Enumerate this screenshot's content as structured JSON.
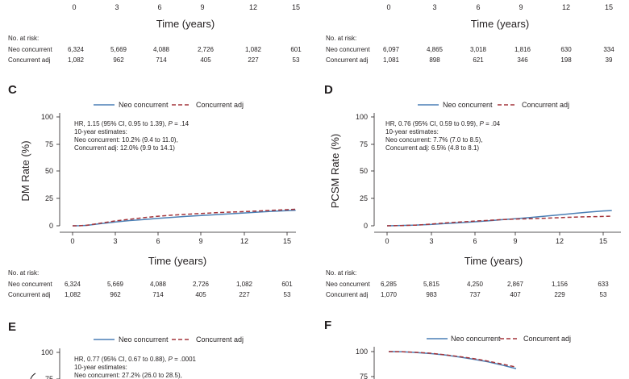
{
  "colors": {
    "neo": "#4a7fb5",
    "adj": "#a4343a",
    "axis": "#231f20"
  },
  "risk_header": "No. at risk:",
  "top_left": {
    "ticks": [
      "0",
      "3",
      "6",
      "9",
      "12",
      "15"
    ],
    "xlabel": "Time (years)",
    "risk_rows": [
      {
        "label": "Neo concurrent",
        "values": [
          "6,324",
          "5,669",
          "4,088",
          "2,726",
          "1,082",
          "601"
        ]
      },
      {
        "label": "Concurrent adj",
        "values": [
          "1,082",
          "962",
          "714",
          "405",
          "227",
          "53"
        ]
      }
    ]
  },
  "top_right": {
    "ticks": [
      "0",
      "3",
      "6",
      "9",
      "12",
      "15"
    ],
    "xlabel": "Time (years)",
    "risk_rows": [
      {
        "label": "Neo concurrent",
        "values": [
          "6,097",
          "4,865",
          "3,018",
          "1,816",
          "630",
          "334"
        ]
      },
      {
        "label": "Concurrent adj",
        "values": [
          "1,081",
          "898",
          "621",
          "346",
          "198",
          "39"
        ]
      }
    ]
  },
  "panel_c": {
    "letter": "C",
    "legend": [
      "Neo concurrent",
      "Concurrent adj"
    ],
    "hr_prefix": "HR, 1.15 (95% CI, 0.95 to 1.39),",
    "hr_p": "P",
    "hr_suffix": " = .14",
    "ann_lines": [
      "10-year estimates:",
      "Neo concurrent: 10.2% (9.4 to 11.0),",
      "Concurrent adj: 12.0% (9.9 to 14.1)"
    ],
    "ylabel": "DM Rate (%)",
    "xlabel": "Time (years)",
    "yticks": [
      "0",
      "25",
      "50",
      "75",
      "100"
    ],
    "xticks": [
      "0",
      "3",
      "6",
      "9",
      "12",
      "15"
    ],
    "risk_rows": [
      {
        "label": "Neo concurrent",
        "values": [
          "6,324",
          "5,669",
          "4,088",
          "2,726",
          "1,082",
          "601"
        ]
      },
      {
        "label": "Concurrent adj",
        "values": [
          "1,082",
          "962",
          "714",
          "405",
          "227",
          "53"
        ]
      }
    ]
  },
  "panel_d": {
    "letter": "D",
    "legend": [
      "Neo concurrent",
      "Concurrent adj"
    ],
    "hr_prefix": "HR, 0.76 (95% CI, 0.59 to 0.99),",
    "hr_p": "P",
    "hr_suffix": " = .04",
    "ann_lines": [
      "10-year estimates:",
      "Neo concurrent: 7.7% (7.0 to 8.5),",
      "Concurrent adj: 6.5% (4.8 to 8.1)"
    ],
    "ylabel": "PCSM Rate (%)",
    "xlabel": "Time (years)",
    "yticks": [
      "0",
      "25",
      "50",
      "75",
      "100"
    ],
    "xticks": [
      "0",
      "3",
      "6",
      "9",
      "12",
      "15"
    ],
    "risk_rows": [
      {
        "label": "Neo concurrent",
        "values": [
          "6,285",
          "5,815",
          "4,250",
          "2,867",
          "1,156",
          "633"
        ]
      },
      {
        "label": "Concurrent adj",
        "values": [
          "1,070",
          "983",
          "737",
          "407",
          "229",
          "53"
        ]
      }
    ]
  },
  "panel_e": {
    "letter": "E",
    "legend": [
      "Neo concurrent",
      "Concurrent adj"
    ],
    "hr_prefix": "HR, 0.77 (95% CI, 0.67 to 0.88),",
    "hr_p": "P",
    "hr_suffix": " = .0001",
    "ann_lines": [
      "10-year estimates:",
      "Neo concurrent: 27.2% (26.0 to 28.5),"
    ],
    "ytick_top": "100",
    "ytick_partial": "75"
  },
  "panel_f": {
    "letter": "F",
    "legend": [
      "Neo concurrent",
      "Concurrent adj"
    ],
    "yticks": [
      "100",
      "75"
    ]
  },
  "chart_data": [
    {
      "type": "line",
      "panel": "C",
      "ylabel": "DM Rate (%)",
      "xlabel": "Time (years)",
      "xlim": [
        0,
        15.6
      ],
      "ylim": [
        0,
        100
      ],
      "series": [
        {
          "name": "Neo concurrent",
          "x": [
            0,
            0.5,
            1,
            1.5,
            2,
            3,
            4,
            5,
            6,
            7,
            8,
            9,
            10,
            11,
            12,
            13,
            14,
            15,
            15.6
          ],
          "y": [
            0,
            0.1,
            0.4,
            1.2,
            2,
            3.5,
            4.8,
            5.8,
            6.8,
            7.8,
            8.7,
            9.5,
            10.2,
            11,
            11.8,
            12.6,
            13.3,
            13.9,
            14.2
          ]
        },
        {
          "name": "Concurrent adj",
          "x": [
            0,
            0.5,
            1,
            1.5,
            2,
            3,
            4,
            5,
            6,
            7,
            8,
            9,
            10,
            11,
            12,
            13,
            14,
            15,
            15.6
          ],
          "y": [
            0,
            0.1,
            0.5,
            1.5,
            2.5,
            4.5,
            6,
            7.5,
            8.8,
            9.8,
            10.6,
            11.3,
            12,
            12.6,
            13,
            13.6,
            14.2,
            14.8,
            15.2
          ]
        }
      ]
    },
    {
      "type": "line",
      "panel": "D",
      "ylabel": "PCSM Rate (%)",
      "xlabel": "Time (years)",
      "xlim": [
        0,
        15.6
      ],
      "ylim": [
        0,
        100
      ],
      "series": [
        {
          "name": "Neo concurrent",
          "x": [
            0,
            1,
            2,
            3,
            4,
            5,
            6,
            7,
            8,
            9,
            10,
            11,
            12,
            13,
            14,
            15,
            15.6
          ],
          "y": [
            0,
            0.3,
            0.7,
            1.2,
            2,
            2.8,
            3.6,
            4.5,
            5.6,
            6.6,
            7.7,
            8.9,
            10.1,
            11.4,
            12.6,
            13.6,
            14
          ]
        },
        {
          "name": "Concurrent adj",
          "x": [
            0,
            1,
            2,
            3,
            4,
            5,
            6,
            7,
            8,
            9,
            10,
            11,
            12,
            13,
            14,
            15,
            15.6
          ],
          "y": [
            0,
            0.2,
            0.6,
            1.5,
            2.6,
            3.4,
            4.2,
            5,
            5.7,
            6.2,
            6.5,
            7,
            7.5,
            8,
            8.3,
            8.6,
            8.8
          ]
        }
      ]
    },
    {
      "type": "line",
      "panel": "F",
      "ylim_visible": [
        75,
        100
      ],
      "series": [
        {
          "name": "Neo concurrent",
          "x": [
            0,
            1,
            2,
            3,
            4,
            5,
            6,
            7,
            8,
            9
          ],
          "y": [
            100,
            99.8,
            99,
            98,
            96.5,
            94.5,
            92.3,
            89.8,
            86.5,
            83
          ]
        },
        {
          "name": "Concurrent adj",
          "x": [
            0,
            1,
            2,
            3,
            4,
            5,
            6,
            7,
            8,
            9
          ],
          "y": [
            100,
            99.8,
            99.2,
            98.3,
            96.8,
            95,
            93,
            90.5,
            87.5,
            84.5
          ]
        }
      ]
    }
  ]
}
